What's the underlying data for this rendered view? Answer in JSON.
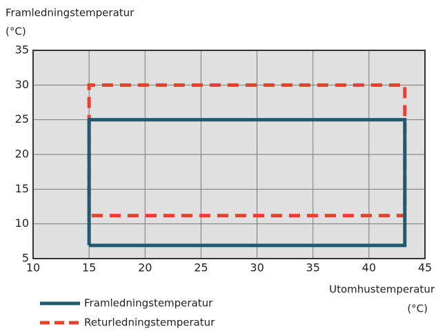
{
  "chart_data": {
    "type": "line",
    "y_label": [
      "Framledningstemperatur",
      "(°C)"
    ],
    "x_label": [
      "Utomhustemperatur",
      "(°C)"
    ],
    "xlim": [
      10,
      45
    ],
    "xticks": [
      10,
      15,
      20,
      25,
      30,
      35,
      40,
      45
    ],
    "ylim": [
      5,
      35
    ],
    "yticks": [
      5,
      10,
      15,
      20,
      25,
      30,
      35
    ],
    "grid": true,
    "legend": "bottom-left",
    "series": [
      {
        "name": "Returledningstemperatur",
        "color": "#e8402a",
        "dashed": true,
        "x": [
          15,
          15,
          43.2,
          43.2,
          15
        ],
        "values": [
          11.2,
          30,
          30,
          11.2,
          11.2
        ]
      },
      {
        "name": "Framledningstemperatur",
        "color": "#1f5a6e",
        "dashed": false,
        "x": [
          15,
          15,
          43.2,
          43.2,
          15
        ],
        "values": [
          6.9,
          25,
          25,
          6.9,
          6.9
        ]
      }
    ]
  }
}
